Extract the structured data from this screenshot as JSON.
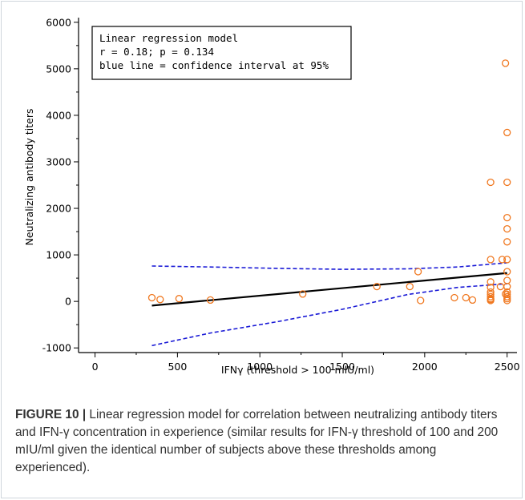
{
  "figure": {
    "caption_label": "FIGURE 10 |",
    "caption_text": " Linear regression model for correlation between neutralizing antibody titers and IFN-γ concentration in experience (similar results for IFN-γ threshold of 100 and 200 mIU/ml given the identical number of subjects above these thresholds among experienced)."
  },
  "chart_data": {
    "type": "scatter",
    "xlabel": "IFNγ (threshold > 100 mlU/ml)",
    "ylabel": "Neutralizing antibody titers",
    "xlim": [
      -100,
      2560
    ],
    "ylim": [
      -1100,
      6100
    ],
    "xticks": [
      0,
      500,
      1000,
      1500,
      2000,
      2500
    ],
    "yticks": [
      -1000,
      0,
      1000,
      2000,
      3000,
      4000,
      5000,
      6000
    ],
    "annotation": [
      "Linear regression model",
      "r = 0.18; p = 0.134",
      "blue line = confidence interval at 95%"
    ],
    "points": {
      "x": [
        345,
        395,
        510,
        700,
        1260,
        1710,
        1910,
        1960,
        1975,
        2180,
        2250,
        2290,
        2400,
        2400,
        2400,
        2400,
        2400,
        2400,
        2400,
        2400,
        2400,
        2400,
        2460,
        2470,
        2490,
        2490,
        2500,
        2500,
        2500,
        2500,
        2500,
        2500,
        2500,
        2500,
        2500,
        2500,
        2500,
        2500,
        2500,
        2500
      ],
      "y": [
        80,
        40,
        60,
        30,
        160,
        320,
        320,
        640,
        20,
        80,
        80,
        30,
        2560,
        900,
        420,
        300,
        200,
        150,
        100,
        60,
        40,
        20,
        320,
        900,
        5120,
        160,
        3630,
        2560,
        1800,
        1560,
        1280,
        900,
        640,
        450,
        320,
        200,
        150,
        100,
        60,
        20
      ]
    },
    "regression_line": {
      "x": [
        345,
        2500
      ],
      "y": [
        -90,
        610
      ]
    },
    "ci_upper": {
      "x": [
        345,
        700,
        1100,
        1500,
        1900,
        2200,
        2500
      ],
      "y": [
        760,
        740,
        710,
        690,
        700,
        740,
        830
      ]
    },
    "ci_lower": {
      "x": [
        345,
        700,
        1100,
        1500,
        1900,
        2200,
        2500
      ],
      "y": [
        -950,
        -680,
        -440,
        -170,
        150,
        300,
        380
      ]
    },
    "colors": {
      "points": "#f07820",
      "regression": "#000000",
      "ci": "#1a1ad6"
    },
    "grid": false
  }
}
